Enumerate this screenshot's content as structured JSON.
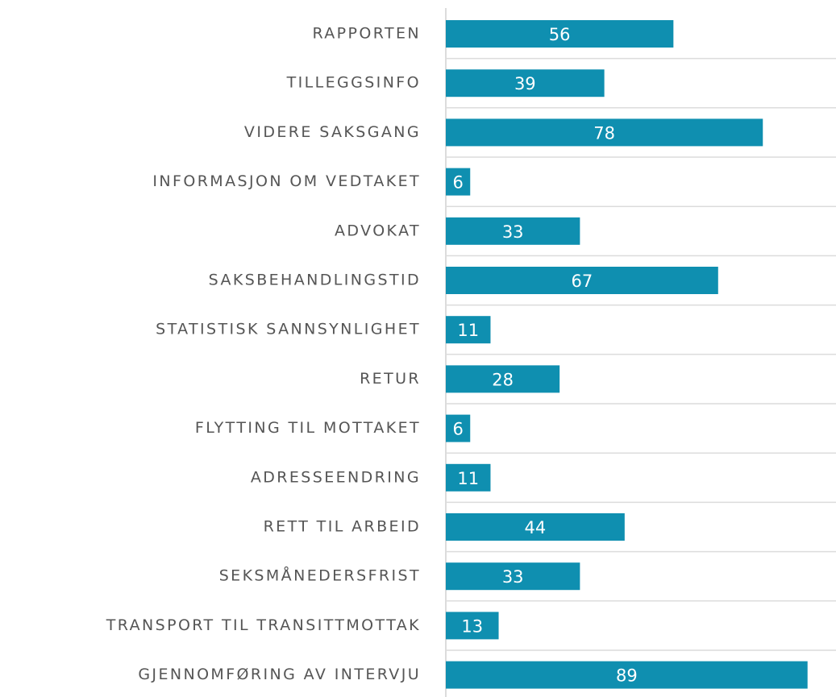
{
  "chart_data": {
    "type": "barh",
    "categories": [
      "RAPPORTEN",
      "TILLEGGSINFO",
      "VIDERE SAKSGANG",
      "INFORMASJON OM VEDTAKET",
      "ADVOKAT",
      "SAKSBEHANDLINGSTID",
      "STATISTISK SANNSYNLIGHET",
      "RETUR",
      "FLYTTING TIL MOTTAKET",
      "ADRESSEENDRING",
      "RETT TIL ARBEID",
      "SEKSMÅNEDERSFRIST",
      "TRANSPORT TIL TRANSITTMOTTAK",
      "GJENNOMFØRING AV INTERVJU"
    ],
    "values": [
      56,
      39,
      78,
      6,
      33,
      67,
      11,
      28,
      6,
      11,
      44,
      33,
      13,
      89
    ],
    "color": "#0f8fb0",
    "xlim": [
      0,
      96
    ]
  }
}
